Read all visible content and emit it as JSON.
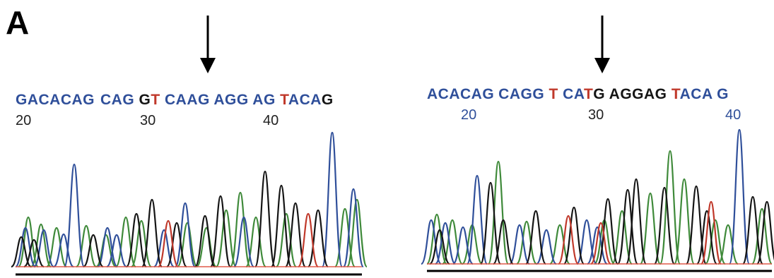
{
  "figure": {
    "panel_label": "A",
    "colors": {
      "A": "#3f8a3a",
      "C": "#2f4f9a",
      "G": "#151515",
      "T": "#c0392b",
      "baseline": "#000000"
    },
    "panels": [
      {
        "id": "left",
        "sequence_segments": [
          {
            "text": "GACACAG",
            "color": "C"
          },
          {
            "text": "CAG",
            "color": "C"
          },
          {
            "text": " G",
            "color": "G"
          },
          {
            "text": "T",
            "color": "T"
          },
          {
            "text": " CAAG AGG AG ",
            "color": "C"
          },
          {
            "text": "T",
            "color": "T"
          },
          {
            "text": "ACA",
            "color": "C"
          },
          {
            "text": "G",
            "color": "G"
          }
        ],
        "positions": [
          "20",
          "30",
          "40"
        ],
        "positions_style": "dark"
      },
      {
        "id": "right",
        "sequence_segments": [
          {
            "text": "ACACAG",
            "color": "C"
          },
          {
            "text": "CAGG",
            "color": "C"
          },
          {
            "text": " T",
            "color": "T"
          },
          {
            "text": " CA",
            "color": "C"
          },
          {
            "text": "T",
            "color": "T"
          },
          {
            "text": "G AGGAG ",
            "color": "G"
          },
          {
            "text": "T",
            "color": "T"
          },
          {
            "text": "ACA G",
            "color": "C"
          }
        ],
        "positions": [
          "20",
          "30",
          "40"
        ],
        "positions_style": "blue"
      }
    ],
    "traces": {
      "left": {
        "A": [
          [
            40,
            70
          ],
          [
            58,
            60
          ],
          [
            80,
            55
          ],
          [
            122,
            58
          ],
          [
            150,
            45
          ],
          [
            178,
            70
          ],
          [
            200,
            65
          ],
          [
            265,
            62
          ],
          [
            292,
            55
          ],
          [
            320,
            80
          ],
          [
            340,
            105
          ],
          [
            362,
            70
          ],
          [
            405,
            75
          ],
          [
            488,
            82
          ],
          [
            505,
            95
          ]
        ],
        "C": [
          [
            36,
            55
          ],
          [
            62,
            52
          ],
          [
            90,
            46
          ],
          [
            105,
            145
          ],
          [
            152,
            55
          ],
          [
            165,
            45
          ],
          [
            232,
            52
          ],
          [
            262,
            90
          ],
          [
            345,
            70
          ],
          [
            470,
            190
          ],
          [
            500,
            110
          ]
        ],
        "G": [
          [
            30,
            42
          ],
          [
            48,
            38
          ],
          [
            132,
            45
          ],
          [
            193,
            75
          ],
          [
            215,
            95
          ],
          [
            250,
            62
          ],
          [
            290,
            72
          ],
          [
            312,
            100
          ],
          [
            375,
            135
          ],
          [
            398,
            115
          ],
          [
            418,
            90
          ],
          [
            450,
            80
          ]
        ],
        "T": [
          [
            238,
            65
          ],
          [
            436,
            75
          ]
        ]
      },
      "right": {
        "A": [
          [
            618,
            70
          ],
          [
            640,
            62
          ],
          [
            668,
            55
          ],
          [
            705,
            145
          ],
          [
            745,
            60
          ],
          [
            792,
            55
          ],
          [
            855,
            62
          ],
          [
            880,
            75
          ],
          [
            920,
            100
          ],
          [
            948,
            160
          ],
          [
            968,
            120
          ],
          [
            1012,
            62
          ],
          [
            1030,
            55
          ],
          [
            1078,
            78
          ]
        ],
        "C": [
          [
            610,
            62
          ],
          [
            630,
            58
          ],
          [
            655,
            52
          ],
          [
            675,
            125
          ],
          [
            735,
            55
          ],
          [
            773,
            48
          ],
          [
            830,
            62
          ],
          [
            845,
            52
          ],
          [
            1046,
            190
          ]
        ],
        "G": [
          [
            622,
            48
          ],
          [
            694,
            115
          ],
          [
            712,
            62
          ],
          [
            758,
            75
          ],
          [
            812,
            80
          ],
          [
            860,
            92
          ],
          [
            888,
            105
          ],
          [
            900,
            120
          ],
          [
            940,
            108
          ],
          [
            985,
            110
          ],
          [
            1000,
            75
          ],
          [
            1065,
            95
          ],
          [
            1085,
            88
          ]
        ],
        "T": [
          [
            804,
            68
          ],
          [
            850,
            58
          ],
          [
            1006,
            88
          ]
        ]
      }
    }
  }
}
